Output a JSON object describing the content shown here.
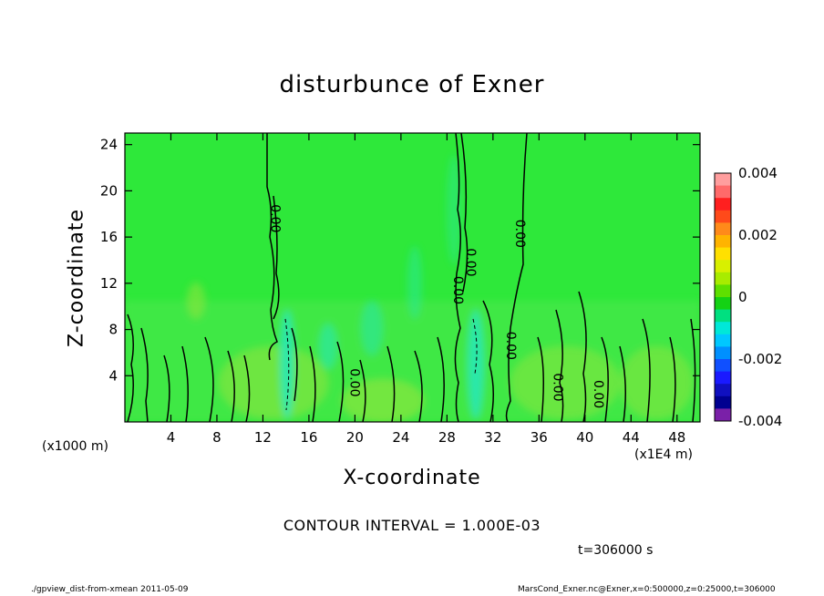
{
  "chart_data": {
    "type": "heatmap",
    "subtype": "filled-contour",
    "title": "disturbunce of Exner",
    "xlabel": "X-coordinate",
    "ylabel": "Z-coordinate",
    "x_unit_left": "(x1000 m)",
    "x_unit_right": "(x1E4 m)",
    "xlim": [
      0,
      50
    ],
    "ylim": [
      0,
      25
    ],
    "x_ticks": [
      4,
      8,
      12,
      16,
      20,
      24,
      28,
      32,
      36,
      40,
      44,
      48
    ],
    "y_ticks": [
      4,
      8,
      12,
      16,
      20,
      24
    ],
    "contour_labels": [
      {
        "text": "0.00",
        "x": 12.7,
        "y": 17.6
      },
      {
        "text": "0.00",
        "x": 28.6,
        "y": 11.4
      },
      {
        "text": "0.00",
        "x": 29.7,
        "y": 13.8
      },
      {
        "text": "0.00",
        "x": 34.0,
        "y": 16.3
      },
      {
        "text": "0.00",
        "x": 33.2,
        "y": 6.6
      },
      {
        "text": "0.00",
        "x": 19.6,
        "y": 3.4
      },
      {
        "text": "0.00",
        "x": 37.3,
        "y": 3.0
      },
      {
        "text": "0.00",
        "x": 40.8,
        "y": 2.4
      }
    ],
    "colorbar": {
      "min": -0.004,
      "max": 0.004,
      "tick_labels": [
        "0.004",
        "0.002",
        "0",
        "-0.002",
        "-0.004"
      ],
      "tick_values": [
        0.004,
        0.002,
        0,
        -0.002,
        -0.004
      ],
      "colors": [
        "#ff9e9e",
        "#ff6a6a",
        "#ff1f1f",
        "#ff4a1a",
        "#ff8a1a",
        "#ffb400",
        "#ffe000",
        "#d8f000",
        "#a8ec00",
        "#5ee000",
        "#14d214",
        "#00e080",
        "#00e8d8",
        "#00c8ff",
        "#0090ff",
        "#1050ff",
        "#1a1aff",
        "#1010c0",
        "#000090",
        "#7a20a8"
      ]
    },
    "contour_interval_text": "CONTOUR INTERVAL = 1.000E-03",
    "time_text": "t=306000 s"
  },
  "footer": {
    "left": "./gpview_dist-from-xmean  2011-05-09",
    "right": "MarsCond_Exner.nc@Exner,x=0:500000,z=0:25000,t=306000"
  },
  "colors": {
    "background_field": "#2ee83a",
    "field_light": "#5ae66a",
    "yellowish": "#9ee63c",
    "cyan": "#28e8b4"
  }
}
